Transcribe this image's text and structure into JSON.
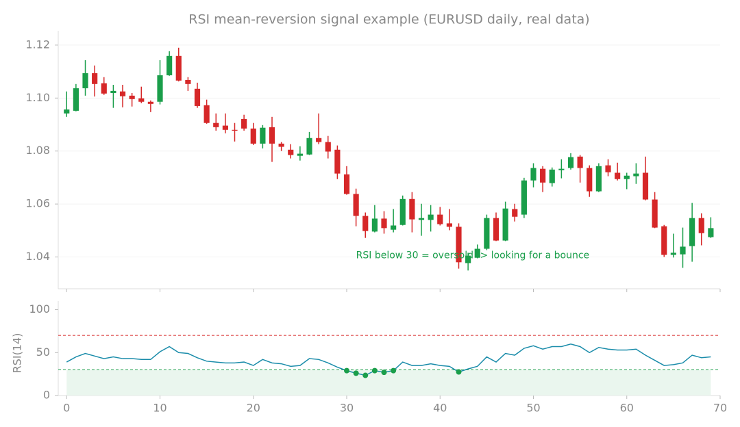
{
  "chart_data": [
    {
      "type": "candlestick",
      "title": "RSI mean-reversion signal example (EURUSD daily, real data)",
      "x": [
        0,
        1,
        2,
        3,
        4,
        5,
        6,
        7,
        8,
        9,
        10,
        11,
        12,
        13,
        14,
        15,
        16,
        17,
        18,
        19,
        20,
        21,
        22,
        23,
        24,
        25,
        26,
        27,
        28,
        29,
        30,
        31,
        32,
        33,
        34,
        35,
        36,
        37,
        38,
        39,
        40,
        41,
        42,
        43,
        44,
        45,
        46,
        47,
        48,
        49,
        50,
        51,
        52,
        53,
        54,
        55,
        56,
        57,
        58,
        59,
        60,
        61,
        62,
        63,
        64,
        65,
        66,
        67,
        68,
        69
      ],
      "open": [
        1.0942,
        1.0952,
        1.1037,
        1.1094,
        1.1056,
        1.1019,
        1.1025,
        1.1009,
        1.0999,
        1.0986,
        1.0986,
        1.1086,
        1.1159,
        1.1068,
        1.1035,
        1.0973,
        1.0906,
        1.0896,
        1.088,
        1.0921,
        1.0885,
        1.0828,
        1.089,
        1.0828,
        1.0805,
        1.0782,
        1.0787,
        1.0849,
        1.0834,
        1.0805,
        1.0712,
        1.0638,
        1.0555,
        1.0496,
        1.0545,
        1.0503,
        1.0521,
        1.0619,
        1.054,
        1.054,
        1.056,
        1.0527,
        1.0514,
        1.0377,
        1.0397,
        1.0431,
        1.0547,
        1.0462,
        1.0581,
        1.056,
        1.0689,
        1.0733,
        1.0679,
        1.0728,
        1.0736,
        1.0779,
        1.0736,
        1.0648,
        1.0746,
        1.0718,
        1.0694,
        1.0705,
        1.0718,
        1.0617,
        1.0516,
        1.0408,
        1.041,
        1.0441,
        1.0547,
        1.0475
      ],
      "high": [
        1.1025,
        1.1053,
        1.1143,
        1.1123,
        1.1079,
        1.105,
        1.105,
        1.1019,
        1.1043,
        1.0991,
        1.1143,
        1.1177,
        1.119,
        1.1079,
        1.1058,
        1.0994,
        1.0942,
        1.0942,
        1.0906,
        1.0937,
        1.0906,
        1.0898,
        1.0929,
        1.0834,
        1.0826,
        1.0818,
        1.0872,
        1.0942,
        1.0857,
        1.0821,
        1.0743,
        1.0658,
        1.0568,
        1.0596,
        1.0573,
        1.0581,
        1.0632,
        1.0645,
        1.0601,
        1.0596,
        1.0589,
        1.0581,
        1.0527,
        1.0416,
        1.0447,
        1.056,
        1.0568,
        1.0609,
        1.0601,
        1.0699,
        1.0754,
        1.0743,
        1.0738,
        1.0769,
        1.0792,
        1.0785,
        1.0746,
        1.0754,
        1.0769,
        1.0756,
        1.0718,
        1.0754,
        1.0779,
        1.0645,
        1.0521,
        1.0488,
        1.0511,
        1.0604,
        1.0565,
        1.055
      ],
      "low": [
        1.0929,
        1.095,
        1.1009,
        1.1006,
        1.1012,
        1.0963,
        1.0965,
        1.0968,
        1.0981,
        1.0947,
        1.0976,
        1.1084,
        1.1063,
        1.1027,
        1.0963,
        1.0903,
        1.0877,
        1.0867,
        1.0836,
        1.0877,
        1.0823,
        1.081,
        1.0759,
        1.08,
        1.0772,
        1.0764,
        1.0785,
        1.0826,
        1.0772,
        1.0694,
        1.0635,
        1.0516,
        1.0472,
        1.0493,
        1.0488,
        1.0493,
        1.0519,
        1.0493,
        1.048,
        1.0496,
        1.0519,
        1.0501,
        1.0356,
        1.0349,
        1.0395,
        1.0426,
        1.046,
        1.046,
        1.0534,
        1.0547,
        1.0663,
        1.0645,
        1.0666,
        1.0697,
        1.073,
        1.0681,
        1.0627,
        1.0645,
        1.0705,
        1.0689,
        1.0656,
        1.0676,
        1.0614,
        1.0509,
        1.04,
        1.0398,
        1.0359,
        1.0382,
        1.0444,
        1.0472
      ],
      "close": [
        1.0957,
        1.1037,
        1.1094,
        1.1053,
        1.1017,
        1.1027,
        1.1007,
        1.0996,
        1.0986,
        1.0978,
        1.1086,
        1.1159,
        1.1066,
        1.1053,
        1.097,
        1.0906,
        1.089,
        1.088,
        1.0877,
        1.0885,
        1.0828,
        1.0888,
        1.0828,
        1.0816,
        1.0785,
        1.079,
        1.0849,
        1.0834,
        1.0798,
        1.0715,
        1.0638,
        1.0555,
        1.0498,
        1.0545,
        1.0509,
        1.0519,
        1.0619,
        1.0542,
        1.0547,
        1.056,
        1.0524,
        1.0514,
        1.038,
        1.0405,
        1.0431,
        1.0547,
        1.0462,
        1.0583,
        1.0552,
        1.0689,
        1.0736,
        1.0681,
        1.073,
        1.0733,
        1.0777,
        1.0736,
        1.0648,
        1.0743,
        1.072,
        1.0694,
        1.0707,
        1.0715,
        1.0617,
        1.0511,
        1.0408,
        1.0416,
        1.0439,
        1.0547,
        1.049,
        1.0509
      ],
      "up_color": "#1a9e4a",
      "down_color": "#d62728",
      "xlim": [
        -0.9,
        70
      ],
      "ylim": [
        1.028,
        1.1254
      ],
      "yticks": [
        1.04,
        1.06,
        1.08,
        {
          "value": 1.1,
          "label": "1.10"
        },
        1.12
      ],
      "grid": true,
      "annotation": {
        "text": "RSI below 30 = oversold -> looking for a bounce",
        "x": 31,
        "y": 1.04,
        "color": "#1a9e4a"
      }
    },
    {
      "type": "line",
      "ylabel": "RSI(14)",
      "x": [
        0,
        1,
        2,
        3,
        4,
        5,
        6,
        7,
        8,
        9,
        10,
        11,
        12,
        13,
        14,
        15,
        16,
        17,
        18,
        19,
        20,
        21,
        22,
        23,
        24,
        25,
        26,
        27,
        28,
        29,
        30,
        31,
        32,
        33,
        34,
        35,
        36,
        37,
        38,
        39,
        40,
        41,
        42,
        43,
        44,
        45,
        46,
        47,
        48,
        49,
        50,
        51,
        52,
        53,
        54,
        55,
        56,
        57,
        58,
        59,
        60,
        61,
        62,
        63,
        64,
        65,
        66,
        67,
        68,
        69
      ],
      "values": [
        39,
        45,
        49,
        46,
        43,
        45,
        43,
        43,
        42,
        42,
        51,
        57,
        50,
        49,
        44,
        40,
        39,
        38,
        38,
        39,
        35,
        42,
        38,
        37,
        34,
        35,
        43,
        42,
        38,
        33,
        29,
        26,
        23.5,
        29,
        27,
        29,
        39,
        35,
        35,
        37,
        35,
        34,
        27.5,
        31,
        34,
        45,
        39,
        49,
        47,
        55,
        58,
        54,
        57,
        57,
        60,
        57,
        50,
        56,
        54,
        53,
        53,
        54,
        47,
        41,
        35,
        36,
        38,
        47,
        44,
        45
      ],
      "color": "#1a8caa",
      "hlines": [
        {
          "value": 70,
          "color": "#d62728"
        },
        {
          "value": 30,
          "color": "#1a9e4a"
        }
      ],
      "shade": {
        "from": 0,
        "to": 30,
        "color": "#eaf6ee"
      },
      "xlim": [
        -0.9,
        70
      ],
      "ylim": [
        0,
        110
      ],
      "xticks": [
        0,
        10,
        20,
        30,
        40,
        50,
        60,
        70
      ],
      "yticks": [
        0,
        50,
        100
      ]
    }
  ]
}
